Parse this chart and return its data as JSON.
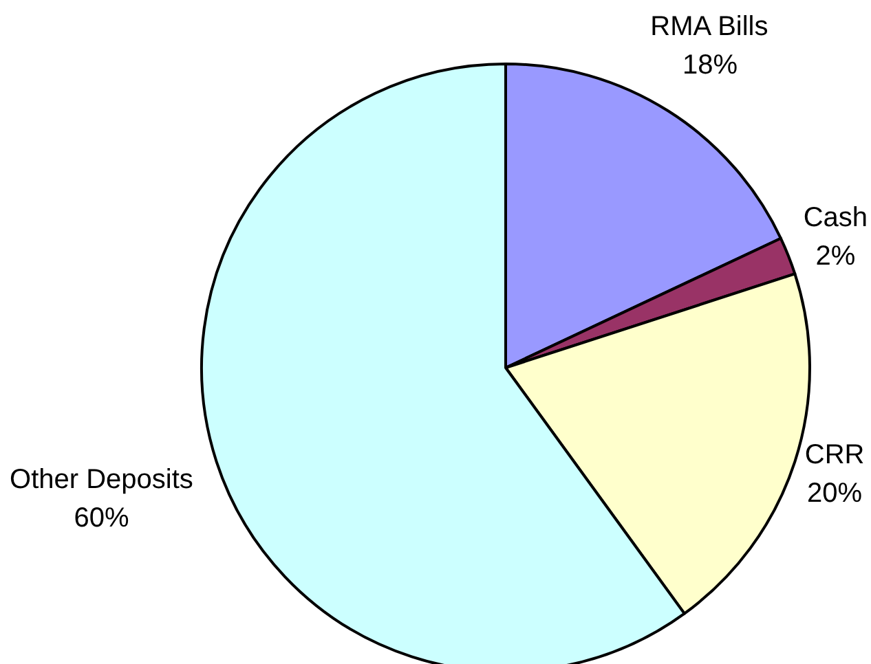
{
  "chart_data": {
    "type": "pie",
    "categories": [
      "RMA Bills",
      "Cash",
      "CRR",
      "Other Deposits"
    ],
    "values": [
      18,
      2,
      20,
      60
    ],
    "colors": [
      "#9999ff",
      "#993366",
      "#ffffcc",
      "#ccffff"
    ],
    "value_labels": [
      "18%",
      "2%",
      "20%",
      "60%"
    ]
  }
}
